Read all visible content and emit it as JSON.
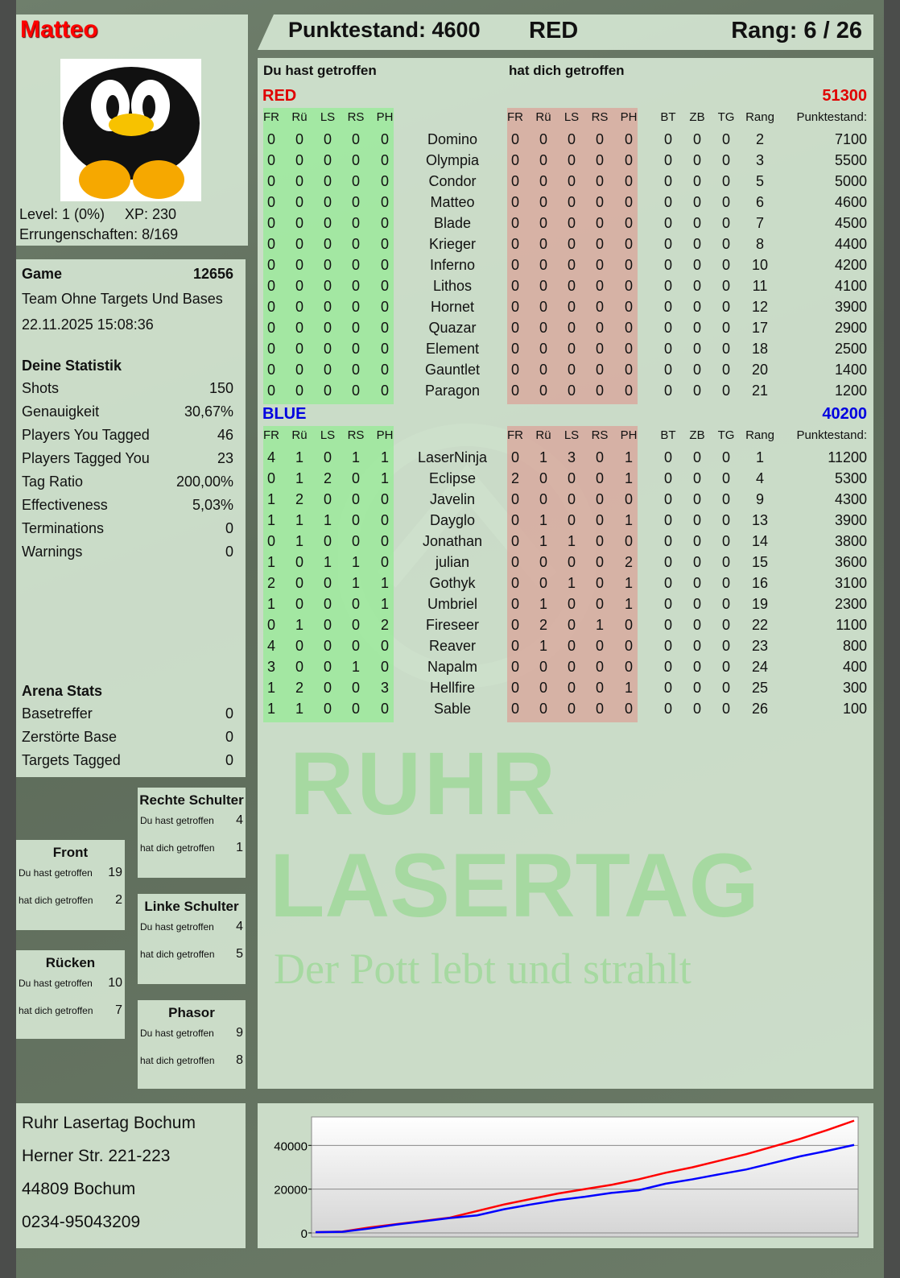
{
  "player": {
    "name": "Matteo",
    "level": "Level: 1 (0%)",
    "xp": "XP: 230",
    "achievements": "Errungenschaften: 8/169",
    "avatar": "penguin-avatar"
  },
  "header": {
    "score": "Punktestand: 4600",
    "team": "RED",
    "rank": "Rang: 6 / 26"
  },
  "game": {
    "label": "Game",
    "id": "12656",
    "mode": "Team Ohne Targets Und Bases",
    "datetime": "22.11.2025 15:08:36"
  },
  "stats": {
    "title": "Deine Statistik",
    "rows": [
      {
        "label": "Shots",
        "value": "150"
      },
      {
        "label": "Genauigkeit",
        "value": "30,67%"
      },
      {
        "label": "Players You Tagged",
        "value": "46"
      },
      {
        "label": "Players Tagged You",
        "value": "23"
      },
      {
        "label": "Tag Ratio",
        "value": "200,00%"
      },
      {
        "label": "Effectiveness",
        "value": "5,03%"
      },
      {
        "label": "Terminations",
        "value": "0"
      },
      {
        "label": "Warnings",
        "value": "0"
      }
    ]
  },
  "arena": {
    "title": "Arena Stats",
    "rows": [
      {
        "label": "Basetreffer",
        "value": "0"
      },
      {
        "label": "Zerstörte Base",
        "value": "0"
      },
      {
        "label": "Targets Tagged",
        "value": "0"
      }
    ]
  },
  "zones": [
    {
      "title": "Rechte Schulter",
      "you_hit_label": "Du hast getroffen",
      "you_hit": "4",
      "hit_you_label": "hat dich getroffen",
      "hit_you": "1"
    },
    {
      "title": "Front",
      "you_hit_label": "Du hast getroffen",
      "you_hit": "19",
      "hit_you_label": "hat dich getroffen",
      "hit_you": "2"
    },
    {
      "title": "Linke Schulter",
      "you_hit_label": "Du hast getroffen",
      "you_hit": "4",
      "hit_you_label": "hat dich getroffen",
      "hit_you": "5"
    },
    {
      "title": "Rücken",
      "you_hit_label": "Du hast getroffen",
      "you_hit": "10",
      "hit_you_label": "hat dich getroffen",
      "hit_you": "7"
    },
    {
      "title": "Phasor",
      "you_hit_label": "Du hast getroffen",
      "you_hit": "9",
      "hit_you_label": "hat dich getroffen",
      "hit_you": "8"
    }
  ],
  "address": {
    "lines": [
      "Ruhr Lasertag Bochum",
      "Herner Str. 221-223",
      "44809 Bochum",
      "0234-95043209"
    ]
  },
  "table": {
    "you_hit_title": "Du hast getroffen",
    "hit_you_title": "hat dich getroffen",
    "hit_cols": [
      "FR",
      "Rü",
      "LS",
      "RS",
      "PH"
    ],
    "extra_cols": [
      "BT",
      "ZB",
      "TG",
      "Rang",
      "Punktestand:"
    ],
    "teams": [
      {
        "name": "RED",
        "color": "#e00000",
        "total": "51300",
        "players": [
          [
            "0",
            "0",
            "0",
            "0",
            "0",
            "Domino",
            "0",
            "0",
            "0",
            "0",
            "0",
            "0",
            "0",
            "0",
            "2",
            "7100"
          ],
          [
            "0",
            "0",
            "0",
            "0",
            "0",
            "Olympia",
            "0",
            "0",
            "0",
            "0",
            "0",
            "0",
            "0",
            "0",
            "3",
            "5500"
          ],
          [
            "0",
            "0",
            "0",
            "0",
            "0",
            "Condor",
            "0",
            "0",
            "0",
            "0",
            "0",
            "0",
            "0",
            "0",
            "5",
            "5000"
          ],
          [
            "0",
            "0",
            "0",
            "0",
            "0",
            "Matteo",
            "0",
            "0",
            "0",
            "0",
            "0",
            "0",
            "0",
            "0",
            "6",
            "4600"
          ],
          [
            "0",
            "0",
            "0",
            "0",
            "0",
            "Blade",
            "0",
            "0",
            "0",
            "0",
            "0",
            "0",
            "0",
            "0",
            "7",
            "4500"
          ],
          [
            "0",
            "0",
            "0",
            "0",
            "0",
            "Krieger",
            "0",
            "0",
            "0",
            "0",
            "0",
            "0",
            "0",
            "0",
            "8",
            "4400"
          ],
          [
            "0",
            "0",
            "0",
            "0",
            "0",
            "Inferno",
            "0",
            "0",
            "0",
            "0",
            "0",
            "0",
            "0",
            "0",
            "10",
            "4200"
          ],
          [
            "0",
            "0",
            "0",
            "0",
            "0",
            "Lithos",
            "0",
            "0",
            "0",
            "0",
            "0",
            "0",
            "0",
            "0",
            "11",
            "4100"
          ],
          [
            "0",
            "0",
            "0",
            "0",
            "0",
            "Hornet",
            "0",
            "0",
            "0",
            "0",
            "0",
            "0",
            "0",
            "0",
            "12",
            "3900"
          ],
          [
            "0",
            "0",
            "0",
            "0",
            "0",
            "Quazar",
            "0",
            "0",
            "0",
            "0",
            "0",
            "0",
            "0",
            "0",
            "17",
            "2900"
          ],
          [
            "0",
            "0",
            "0",
            "0",
            "0",
            "Element",
            "0",
            "0",
            "0",
            "0",
            "0",
            "0",
            "0",
            "0",
            "18",
            "2500"
          ],
          [
            "0",
            "0",
            "0",
            "0",
            "0",
            "Gauntlet",
            "0",
            "0",
            "0",
            "0",
            "0",
            "0",
            "0",
            "0",
            "20",
            "1400"
          ],
          [
            "0",
            "0",
            "0",
            "0",
            "0",
            "Paragon",
            "0",
            "0",
            "0",
            "0",
            "0",
            "0",
            "0",
            "0",
            "21",
            "1200"
          ]
        ]
      },
      {
        "name": "BLUE",
        "color": "#0000e0",
        "total": "40200",
        "players": [
          [
            "4",
            "1",
            "0",
            "1",
            "1",
            "LaserNinja",
            "0",
            "1",
            "3",
            "0",
            "1",
            "0",
            "0",
            "0",
            "1",
            "11200"
          ],
          [
            "0",
            "1",
            "2",
            "0",
            "1",
            "Eclipse",
            "2",
            "0",
            "0",
            "0",
            "1",
            "0",
            "0",
            "0",
            "4",
            "5300"
          ],
          [
            "1",
            "2",
            "0",
            "0",
            "0",
            "Javelin",
            "0",
            "0",
            "0",
            "0",
            "0",
            "0",
            "0",
            "0",
            "9",
            "4300"
          ],
          [
            "1",
            "1",
            "1",
            "0",
            "0",
            "Dayglo",
            "0",
            "1",
            "0",
            "0",
            "1",
            "0",
            "0",
            "0",
            "13",
            "3900"
          ],
          [
            "0",
            "1",
            "0",
            "0",
            "0",
            "Jonathan",
            "0",
            "1",
            "1",
            "0",
            "0",
            "0",
            "0",
            "0",
            "14",
            "3800"
          ],
          [
            "1",
            "0",
            "1",
            "1",
            "0",
            "julian",
            "0",
            "0",
            "0",
            "0",
            "2",
            "0",
            "0",
            "0",
            "15",
            "3600"
          ],
          [
            "2",
            "0",
            "0",
            "1",
            "1",
            "Gothyk",
            "0",
            "0",
            "1",
            "0",
            "1",
            "0",
            "0",
            "0",
            "16",
            "3100"
          ],
          [
            "1",
            "0",
            "0",
            "0",
            "1",
            "Umbriel",
            "0",
            "1",
            "0",
            "0",
            "1",
            "0",
            "0",
            "0",
            "19",
            "2300"
          ],
          [
            "0",
            "1",
            "0",
            "0",
            "2",
            "Fireseer",
            "0",
            "2",
            "0",
            "1",
            "0",
            "0",
            "0",
            "0",
            "22",
            "1100"
          ],
          [
            "4",
            "0",
            "0",
            "0",
            "0",
            "Reaver",
            "0",
            "1",
            "0",
            "0",
            "0",
            "0",
            "0",
            "0",
            "23",
            "800"
          ],
          [
            "3",
            "0",
            "0",
            "1",
            "0",
            "Napalm",
            "0",
            "0",
            "0",
            "0",
            "0",
            "0",
            "0",
            "0",
            "24",
            "400"
          ],
          [
            "1",
            "2",
            "0",
            "0",
            "3",
            "Hellfire",
            "0",
            "0",
            "0",
            "0",
            "1",
            "0",
            "0",
            "0",
            "25",
            "300"
          ],
          [
            "1",
            "1",
            "0",
            "0",
            "0",
            "Sable",
            "0",
            "0",
            "0",
            "0",
            "0",
            "0",
            "0",
            "0",
            "26",
            "100"
          ]
        ]
      }
    ]
  },
  "logo": {
    "line1": "RUHR",
    "line2": "LASERTAG",
    "slogan": "Der Pott lebt und strahlt"
  },
  "chart_data": {
    "type": "line",
    "title": "",
    "xlabel": "",
    "ylabel": "",
    "ylim": [
      0,
      53000
    ],
    "yticks": [
      "0",
      "20000",
      "40000"
    ],
    "grid": true,
    "x": [
      0,
      0.05,
      0.1,
      0.15,
      0.2,
      0.25,
      0.3,
      0.35,
      0.4,
      0.45,
      0.5,
      0.55,
      0.6,
      0.65,
      0.7,
      0.75,
      0.8,
      0.85,
      0.9,
      0.95,
      1.0
    ],
    "series": [
      {
        "color": "#ff0000",
        "values": [
          300,
          600,
          2500,
          4000,
          5500,
          7000,
          10000,
          13000,
          15500,
          18000,
          20000,
          22000,
          24500,
          27500,
          30000,
          33000,
          36000,
          39500,
          43000,
          47000,
          51300
        ]
      },
      {
        "color": "#0000ff",
        "values": [
          300,
          500,
          2000,
          3800,
          5300,
          6800,
          8000,
          10800,
          13000,
          15000,
          16500,
          18300,
          19500,
          22500,
          24500,
          26800,
          29000,
          32000,
          35000,
          37500,
          40200
        ]
      }
    ]
  }
}
